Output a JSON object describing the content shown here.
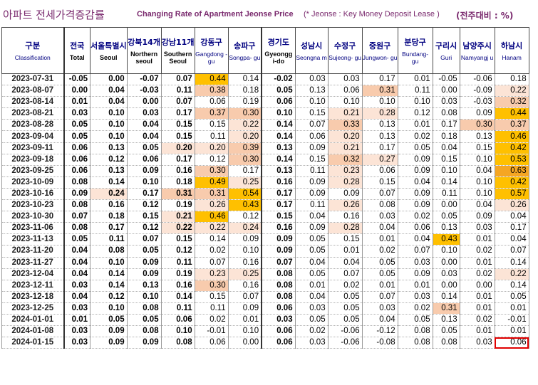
{
  "title": {
    "korean": "아파트 전세가격증감률",
    "english": "Changing Rate of Apartment Jeonse Price",
    "note": "(* Jeonse : Key Money Deposit Lease )",
    "unit": "(전주대비 : %)"
  },
  "columns": [
    {
      "ko": "구분",
      "en": "Classification"
    },
    {
      "ko": "전국",
      "en": "Total"
    },
    {
      "ko": "서울특별시",
      "en": "Seoul"
    },
    {
      "ko": "강북14개",
      "en": "Northern seoul"
    },
    {
      "ko": "강남11개",
      "en": "Southern Seoul"
    },
    {
      "ko": "강동구",
      "en": "Gangdong -gu"
    },
    {
      "ko": "송파구",
      "en": "Songpa- gu"
    },
    {
      "ko": "경기도",
      "en": "Gyeongg i-do"
    },
    {
      "ko": "성남시",
      "en": "Seongna m"
    },
    {
      "ko": "수정구",
      "en": "Sujeong- gu"
    },
    {
      "ko": "중원구",
      "en": "Jungwon- gu"
    },
    {
      "ko": "분당구",
      "en": "Bundang- gu"
    },
    {
      "ko": "구리시",
      "en": "Guri"
    },
    {
      "ko": "남양주시",
      "en": "Namyangj u"
    },
    {
      "ko": "하남시",
      "en": "Hanam"
    }
  ],
  "rows": [
    {
      "date": "2023-07-31",
      "v": [
        "-0.05",
        "0.00",
        "-0.07",
        "0.07",
        "0.44",
        "0.14",
        "-0.02",
        "0.03",
        "0.03",
        "0.17",
        "0.01",
        "-0.05",
        "-0.06",
        "0.18"
      ]
    },
    {
      "date": "2023-08-07",
      "v": [
        "0.00",
        "0.04",
        "-0.03",
        "0.11",
        "0.38",
        "0.18",
        "0.05",
        "0.13",
        "0.06",
        "0.31",
        "0.11",
        "0.00",
        "-0.09",
        "0.22"
      ]
    },
    {
      "date": "2023-08-14",
      "v": [
        "0.01",
        "0.04",
        "0.00",
        "0.07",
        "0.06",
        "0.19",
        "0.06",
        "0.10",
        "0.10",
        "0.10",
        "0.10",
        "0.03",
        "-0.03",
        "0.32"
      ]
    },
    {
      "date": "2023-08-21",
      "v": [
        "0.03",
        "0.10",
        "0.03",
        "0.17",
        "0.37",
        "0.30",
        "0.10",
        "0.15",
        "0.21",
        "0.28",
        "0.12",
        "0.08",
        "0.09",
        "0.44"
      ]
    },
    {
      "date": "2023-08-28",
      "v": [
        "0.05",
        "0.10",
        "0.04",
        "0.15",
        "0.15",
        "0.22",
        "0.14",
        "0.07",
        "0.33",
        "0.13",
        "0.01",
        "0.17",
        "0.30",
        "0.37"
      ]
    },
    {
      "date": "2023-09-04",
      "v": [
        "0.05",
        "0.10",
        "0.04",
        "0.15",
        "0.11",
        "0.20",
        "0.14",
        "0.06",
        "0.20",
        "0.13",
        "0.02",
        "0.18",
        "0.13",
        "0.46"
      ]
    },
    {
      "date": "2023-09-11",
      "v": [
        "0.06",
        "0.13",
        "0.05",
        "0.20",
        "0.20",
        "0.39",
        "0.13",
        "0.09",
        "0.21",
        "0.17",
        "0.05",
        "0.04",
        "0.15",
        "0.42"
      ]
    },
    {
      "date": "2023-09-18",
      "v": [
        "0.06",
        "0.12",
        "0.06",
        "0.17",
        "0.12",
        "0.30",
        "0.14",
        "0.15",
        "0.32",
        "0.27",
        "0.09",
        "0.15",
        "0.10",
        "0.53"
      ]
    },
    {
      "date": "2023-09-25",
      "v": [
        "0.06",
        "0.13",
        "0.09",
        "0.16",
        "0.30",
        "0.17",
        "0.13",
        "0.11",
        "0.23",
        "0.06",
        "0.09",
        "0.10",
        "0.04",
        "0.63"
      ]
    },
    {
      "date": "2023-10-09",
      "v": [
        "0.08",
        "0.14",
        "0.10",
        "0.18",
        "0.49",
        "0.25",
        "0.16",
        "0.09",
        "0.28",
        "0.15",
        "0.04",
        "0.14",
        "0.10",
        "0.42"
      ]
    },
    {
      "date": "2023-10-16",
      "v": [
        "0.09",
        "0.24",
        "0.17",
        "0.31",
        "0.31",
        "0.54",
        "0.17",
        "0.09",
        "0.09",
        "0.07",
        "0.09",
        "0.11",
        "0.10",
        "0.57"
      ]
    },
    {
      "date": "2023-10-23",
      "v": [
        "0.08",
        "0.16",
        "0.12",
        "0.19",
        "0.26",
        "0.43",
        "0.17",
        "0.11",
        "0.26",
        "0.08",
        "0.09",
        "0.00",
        "0.04",
        "0.26"
      ]
    },
    {
      "date": "2023-10-30",
      "v": [
        "0.07",
        "0.18",
        "0.15",
        "0.21",
        "0.46",
        "0.12",
        "0.15",
        "0.04",
        "0.16",
        "0.03",
        "0.02",
        "0.05",
        "0.09",
        "0.04"
      ]
    },
    {
      "date": "2023-11-06",
      "v": [
        "0.08",
        "0.17",
        "0.12",
        "0.22",
        "0.22",
        "0.24",
        "0.16",
        "0.09",
        "0.28",
        "0.04",
        "0.06",
        "0.13",
        "0.03",
        "0.17"
      ]
    },
    {
      "date": "2023-11-13",
      "v": [
        "0.05",
        "0.11",
        "0.07",
        "0.15",
        "0.14",
        "0.09",
        "0.09",
        "0.05",
        "0.15",
        "0.01",
        "0.04",
        "0.43",
        "0.01",
        "0.04"
      ]
    },
    {
      "date": "2023-11-20",
      "v": [
        "0.04",
        "0.08",
        "0.05",
        "0.12",
        "0.02",
        "0.10",
        "0.09",
        "0.05",
        "0.01",
        "0.02",
        "0.07",
        "0.10",
        "0.02",
        "0.07"
      ]
    },
    {
      "date": "2023-11-27",
      "v": [
        "0.04",
        "0.10",
        "0.09",
        "0.11",
        "0.07",
        "0.16",
        "0.07",
        "0.04",
        "0.04",
        "0.05",
        "0.03",
        "0.00",
        "0.01",
        "0.14"
      ]
    },
    {
      "date": "2023-12-04",
      "v": [
        "0.04",
        "0.14",
        "0.09",
        "0.19",
        "0.23",
        "0.25",
        "0.08",
        "0.05",
        "0.07",
        "0.05",
        "0.09",
        "0.03",
        "0.02",
        "0.22"
      ]
    },
    {
      "date": "2023-12-11",
      "v": [
        "0.03",
        "0.14",
        "0.13",
        "0.16",
        "0.30",
        "0.16",
        "0.08",
        "0.01",
        "0.02",
        "0.01",
        "0.01",
        "0.00",
        "0.00",
        "0.14"
      ]
    },
    {
      "date": "2023-12-18",
      "v": [
        "0.04",
        "0.12",
        "0.10",
        "0.14",
        "0.15",
        "0.07",
        "0.08",
        "0.04",
        "0.05",
        "0.07",
        "0.03",
        "0.14",
        "0.01",
        "0.05"
      ]
    },
    {
      "date": "2023-12-25",
      "v": [
        "0.03",
        "0.10",
        "0.08",
        "0.11",
        "0.11",
        "0.09",
        "0.06",
        "0.03",
        "0.05",
        "0.03",
        "0.02",
        "0.31",
        "0.01",
        "0.01"
      ]
    },
    {
      "date": "2024-01-01",
      "v": [
        "0.01",
        "0.05",
        "0.05",
        "0.06",
        "0.02",
        "0.01",
        "0.03",
        "0.05",
        "0.05",
        "0.04",
        "0.05",
        "0.13",
        "0.02",
        "-0.01"
      ]
    },
    {
      "date": "2024-01-08",
      "v": [
        "0.03",
        "0.09",
        "0.08",
        "0.10",
        "-0.01",
        "0.10",
        "0.06",
        "0.02",
        "-0.06",
        "-0.12",
        "0.08",
        "0.05",
        "0.01",
        "0.01"
      ]
    },
    {
      "date": "2024-01-15",
      "v": [
        "0.03",
        "0.09",
        "0.09",
        "0.08",
        "0.06",
        "0.00",
        "0.06",
        "0.03",
        "-0.06",
        "-0.08",
        "0.08",
        "0.08",
        "0.03",
        "0.06"
      ]
    }
  ],
  "highlight_colors": {
    "light": "#fce4d6",
    "mid": "#f8cbad",
    "strong": "#ffc000",
    "strongest": "#f5a623"
  },
  "highlighted_cell": {
    "row": "2024-01-15",
    "column": "Hanam",
    "border_color": "#e00000"
  }
}
